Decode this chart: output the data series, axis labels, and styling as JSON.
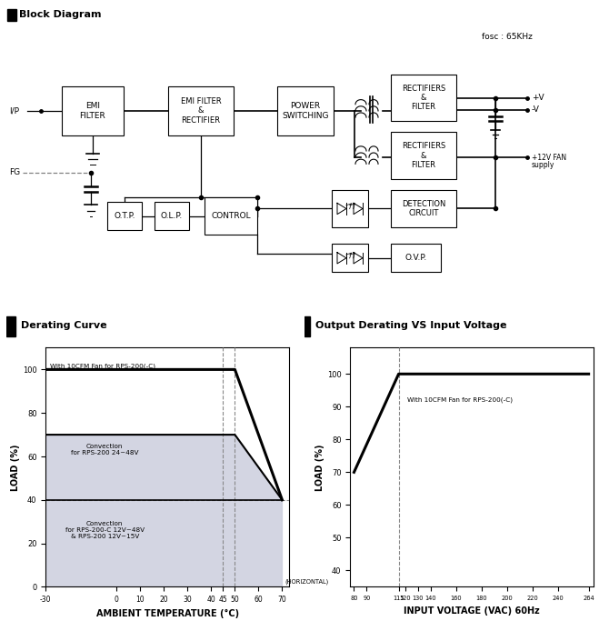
{
  "title_block": "Block Diagram",
  "title_derating": "Derating Curve",
  "title_output": "Output Derating VS Input Voltage",
  "fosc_label": "fosc : 65KHz",
  "bg_color": "#ffffff",
  "derating_curve": {
    "xlabel": "AMBIENT TEMPERATURE (°C)",
    "ylabel": "LOAD (%)",
    "text_fan": "With 10CFM Fan for RPS-200(-C)",
    "text_conv1": "Convection\nfor RPS-200 24~48V",
    "text_conv2": "Convection\nfor RPS-200-C 12V~48V\n& RPS-200 12V~15V",
    "text_horizontal": "(HORIZONTAL)"
  },
  "output_curve": {
    "xlabel": "INPUT VOLTAGE (VAC) 60Hz",
    "ylabel": "LOAD (%)",
    "text_fan": "With 10CFM Fan for RPS-200(-C)"
  }
}
